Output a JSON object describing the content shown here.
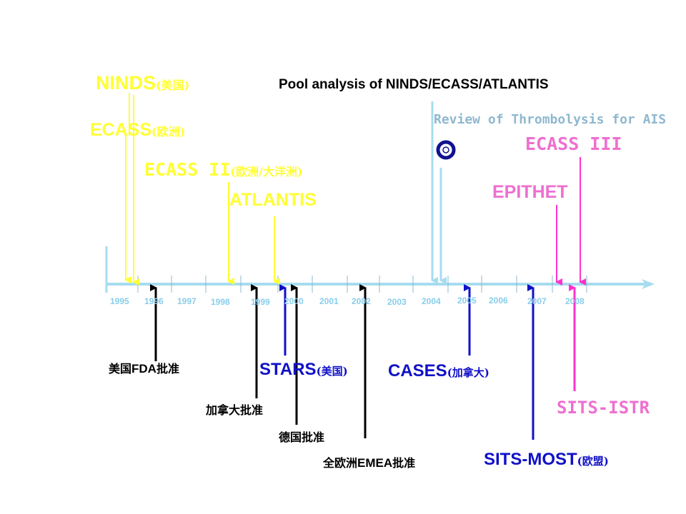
{
  "title": "Pool analysis of NINDS/ECASS/ATLANTIS",
  "review": {
    "text": "Review of Thrombolysis for AIS",
    "icon": "circle-logo-icon"
  },
  "years": [
    "1995",
    "1996",
    "1997",
    "1998",
    "1999",
    "2000",
    "2001",
    "2002",
    "2003",
    "2004",
    "2005",
    "2006",
    "2007",
    "2008"
  ],
  "trials": {
    "ninds": {
      "name": "NINDS",
      "region": "(美国)"
    },
    "ecass": {
      "name": "ECASS",
      "region": "(欧洲)"
    },
    "ecass2": {
      "name": "ECASS II",
      "region": "(欧洲/大洋洲)"
    },
    "atlantis": {
      "name": "ATLANTIS",
      "region": ""
    },
    "ecass3": {
      "name": "ECASS III",
      "region": ""
    },
    "epithet": {
      "name": "EPITHET",
      "region": ""
    }
  },
  "approvals": {
    "us_fda": {
      "pre": "美国",
      "mid": "FDA",
      "post": "批准"
    },
    "canada": {
      "text": "加拿大批准"
    },
    "germany": {
      "text": "德国批准"
    },
    "emea": {
      "pre": "全欧洲",
      "mid": "EMEA",
      "post": "批准"
    }
  },
  "registries": {
    "stars": {
      "name": "STARS",
      "region": "(美国)"
    },
    "cases": {
      "name": "CASES",
      "region": "(加拿大)"
    },
    "sits_most": {
      "name": "SITS-MOST",
      "region": "(欧盟)"
    },
    "sits_istr": {
      "name": "SITS-ISTR",
      "region": ""
    }
  },
  "colors": {
    "yellow": "#ffff33",
    "light_blue": "#a6dcf0",
    "axis": "#a6dcf0",
    "pink": "#ee6fd0",
    "magenta": "#ff33cc",
    "blue": "#1010c8",
    "navy": "#101090",
    "black": "#000000",
    "steel": "#8fb8cf"
  }
}
